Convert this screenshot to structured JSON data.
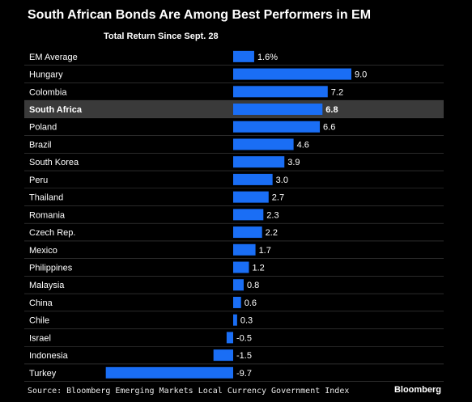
{
  "header": {
    "title": "South African Bonds Are Among Best Performers in EM",
    "subtitle": "Total Return Since Sept. 28"
  },
  "footer": {
    "source": "Source: Bloomberg Emerging Markets Local Currency Government Index",
    "brand": "Bloomberg"
  },
  "colors": {
    "bar": "#1a6ef5",
    "highlight_row": "#3a3a3a",
    "background": "#000000",
    "text": "#ffffff",
    "separator": "#444444"
  },
  "chart_data": {
    "type": "bar",
    "orientation": "horizontal",
    "title": "South African Bonds Are Among Best Performers in EM",
    "subtitle": "Total Return Since Sept. 28",
    "categories": [
      "EM Average",
      "Hungary",
      "Colombia",
      "South Africa",
      "Poland",
      "Brazil",
      "South Korea",
      "Peru",
      "Thailand",
      "Romania",
      "Czech Rep.",
      "Mexico",
      "Philippines",
      "Malaysia",
      "China",
      "Chile",
      "Israel",
      "Indonesia",
      "Turkey"
    ],
    "values": [
      1.6,
      9.0,
      7.2,
      6.8,
      6.6,
      4.6,
      3.9,
      3.0,
      2.7,
      2.3,
      2.2,
      1.7,
      1.2,
      0.8,
      0.6,
      0.3,
      -0.5,
      -1.5,
      -9.7
    ],
    "value_labels": [
      "1.6%",
      "9.0",
      "7.2",
      "6.8",
      "6.6",
      "4.6",
      "3.9",
      "3.0",
      "2.7",
      "2.3",
      "2.2",
      "1.7",
      "1.2",
      "0.8",
      "0.6",
      "0.3",
      "-0.5",
      "-1.5",
      "-9.7"
    ],
    "highlight": "South Africa",
    "xlim": [
      -10,
      9.5
    ],
    "grid": false,
    "legend": "none"
  }
}
